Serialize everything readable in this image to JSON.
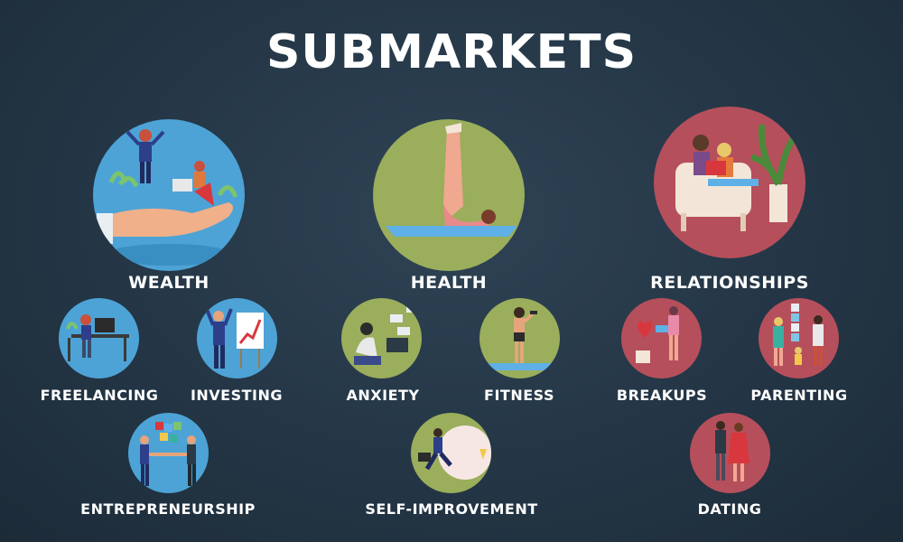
{
  "title": "SUBMARKETS",
  "colors": {
    "background": "#243646",
    "wealth": "#4da3d6",
    "health": "#9aae5c",
    "relationships": "#b64f5c"
  },
  "categories": [
    {
      "label": "WEALTH",
      "icon": "wealth-hand-icon",
      "children": [
        {
          "label": "FREELANCING",
          "icon": "freelancer-desk-icon"
        },
        {
          "label": "INVESTING",
          "icon": "investor-chart-icon"
        },
        {
          "label": "ENTREPRENEURSHIP",
          "icon": "puzzle-handshake-icon"
        }
      ]
    },
    {
      "label": "HEALTH",
      "icon": "yoga-pose-icon",
      "children": [
        {
          "label": "ANXIETY",
          "icon": "anxious-person-icon"
        },
        {
          "label": "FITNESS",
          "icon": "dumbbell-woman-icon"
        },
        {
          "label": "SELF-IMPROVEMENT",
          "icon": "climbing-goal-icon"
        }
      ]
    },
    {
      "label": "RELATIONSHIPS",
      "icon": "couple-reading-icon",
      "children": [
        {
          "label": "BREAKUPS",
          "icon": "broken-heart-plant-icon"
        },
        {
          "label": "PARENTING",
          "icon": "family-blocks-icon"
        },
        {
          "label": "DATING",
          "icon": "dating-couple-icon"
        }
      ]
    }
  ]
}
